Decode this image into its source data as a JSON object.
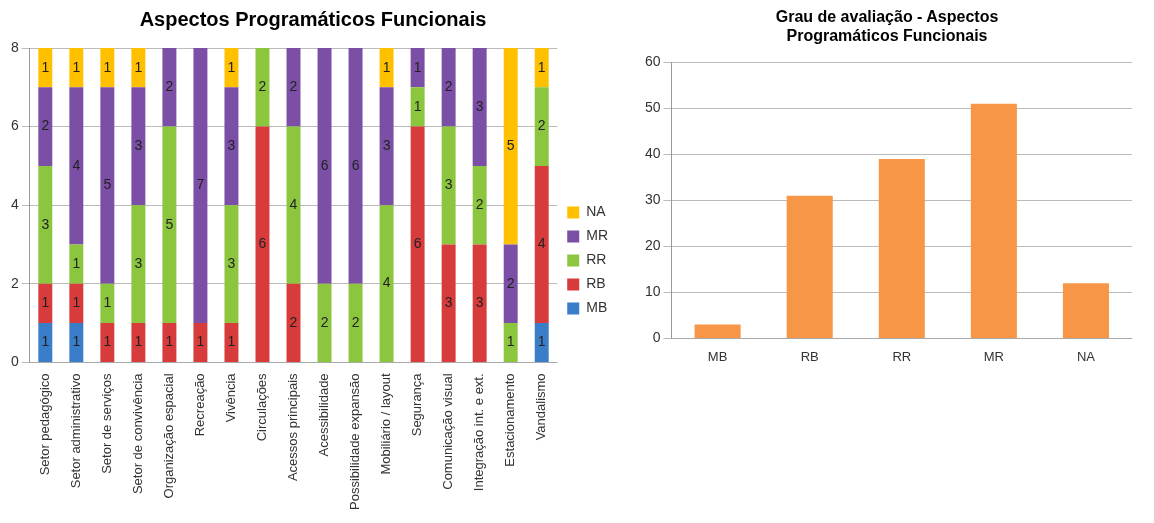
{
  "chart_data": [
    {
      "type": "bar",
      "title": "Aspectos Programáticos Funcionais",
      "stacked": true,
      "data_labels": true,
      "legend": "right",
      "grid": "y",
      "ylim": [
        0,
        8
      ],
      "yticks": [
        0,
        2,
        4,
        6,
        8
      ],
      "categories": [
        "Setor pedagógico",
        "Setor administrativo",
        "Setor de serviços",
        "Setor de convivência",
        "Organização espacial",
        "Recreação",
        "Vivência",
        "Circulações",
        "Acessos principais",
        "Acessibilidade",
        "Possibilidade expansão",
        "Mobiliário / layout",
        "Segurança",
        "Comunicação visual",
        "Integração int. e ext.",
        "Estacionamento",
        "Vandalismo"
      ],
      "series": [
        {
          "name": "MB",
          "color": "#3a7dc9",
          "values": [
            1,
            1,
            null,
            null,
            null,
            null,
            null,
            null,
            null,
            null,
            null,
            null,
            null,
            null,
            null,
            null,
            1
          ]
        },
        {
          "name": "RB",
          "color": "#d83b3b",
          "values": [
            1,
            1,
            1,
            1,
            1,
            1,
            1,
            6,
            2,
            null,
            null,
            null,
            6,
            3,
            3,
            null,
            4
          ]
        },
        {
          "name": "RR",
          "color": "#8cc63f",
          "values": [
            3,
            1,
            1,
            3,
            5,
            null,
            3,
            2,
            4,
            2,
            2,
            4,
            1,
            3,
            2,
            1,
            2
          ]
        },
        {
          "name": "MR",
          "color": "#7b4fa6",
          "values": [
            2,
            4,
            5,
            3,
            2,
            7,
            3,
            null,
            2,
            6,
            6,
            3,
            1,
            2,
            3,
            2,
            null
          ]
        },
        {
          "name": "NA",
          "color": "#ffc000",
          "values": [
            1,
            1,
            1,
            1,
            null,
            null,
            1,
            null,
            null,
            null,
            null,
            1,
            null,
            null,
            null,
            5,
            1
          ]
        }
      ]
    },
    {
      "type": "bar",
      "title": "Grau de avaliação - Aspectos Programáticos Funcionais",
      "grid": "y",
      "ylim": [
        0,
        60
      ],
      "yticks": [
        0,
        10,
        20,
        30,
        40,
        50,
        60
      ],
      "categories": [
        "MB",
        "RB",
        "RR",
        "MR",
        "NA"
      ],
      "values": [
        3,
        31,
        39,
        51,
        12
      ],
      "color": "#f79646"
    }
  ]
}
